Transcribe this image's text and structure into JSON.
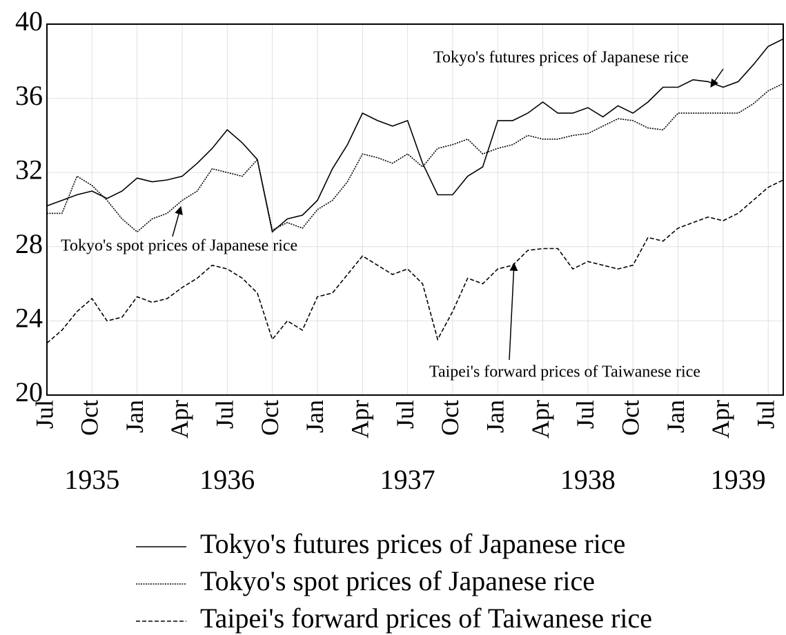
{
  "chart_data": {
    "type": "line",
    "x": [
      "1935-07",
      "1935-08",
      "1935-09",
      "1935-10",
      "1935-11",
      "1935-12",
      "1936-01",
      "1936-02",
      "1936-03",
      "1936-04",
      "1936-05",
      "1936-06",
      "1936-07",
      "1936-08",
      "1936-09",
      "1936-10",
      "1936-11",
      "1936-12",
      "1937-01",
      "1937-02",
      "1937-03",
      "1937-04",
      "1937-05",
      "1937-06",
      "1937-07",
      "1937-08",
      "1937-09",
      "1937-10",
      "1937-11",
      "1937-12",
      "1938-01",
      "1938-02",
      "1938-03",
      "1938-04",
      "1938-05",
      "1938-06",
      "1938-07",
      "1938-08",
      "1938-09",
      "1938-10",
      "1938-11",
      "1938-12",
      "1939-01",
      "1939-02",
      "1939-03",
      "1939-04",
      "1939-05",
      "1939-06",
      "1939-07",
      "1939-08"
    ],
    "series": [
      {
        "name": "Tokyo's futures prices of Japanese rice",
        "color": "#000000",
        "style": "solid",
        "values": [
          30.2,
          30.5,
          30.8,
          31.0,
          30.6,
          31.0,
          31.7,
          31.5,
          31.6,
          31.8,
          32.5,
          33.3,
          34.3,
          33.6,
          32.7,
          28.8,
          29.5,
          29.7,
          30.5,
          32.2,
          33.5,
          35.2,
          34.8,
          34.5,
          34.8,
          32.5,
          30.8,
          30.8,
          31.8,
          32.3,
          34.8,
          34.8,
          35.2,
          35.8,
          35.2,
          35.2,
          35.5,
          35.0,
          35.6,
          35.2,
          35.8,
          36.6,
          36.6,
          37.0,
          36.9,
          36.6,
          36.9,
          37.8,
          38.8,
          39.2
        ]
      },
      {
        "name": "Tokyo's spot prices of Japanese rice",
        "color": "#000000",
        "style": "dotted",
        "values": [
          29.8,
          29.8,
          31.8,
          31.3,
          30.5,
          29.5,
          28.8,
          29.5,
          29.8,
          30.5,
          31.0,
          32.2,
          32.0,
          31.8,
          32.7,
          28.9,
          29.3,
          29.0,
          30.0,
          30.5,
          31.5,
          33.0,
          32.8,
          32.5,
          33.0,
          32.3,
          33.3,
          33.5,
          33.8,
          33.0,
          33.3,
          33.5,
          34.0,
          33.8,
          33.8,
          34.0,
          34.1,
          34.5,
          34.9,
          34.8,
          34.4,
          34.3,
          35.2,
          35.2,
          35.2,
          35.2,
          35.2,
          35.7,
          36.4,
          36.8
        ]
      },
      {
        "name": "Taipei's forward prices of Taiwanese rice",
        "color": "#000000",
        "style": "dashed",
        "values": [
          22.8,
          23.5,
          24.5,
          25.2,
          24.0,
          24.2,
          25.3,
          25.0,
          25.2,
          25.8,
          26.3,
          27.0,
          26.8,
          26.3,
          25.5,
          23.0,
          24.0,
          23.5,
          25.3,
          25.5,
          26.5,
          27.5,
          27.0,
          26.5,
          26.8,
          26.0,
          23.0,
          24.5,
          26.3,
          26.0,
          26.8,
          27.0,
          27.8,
          27.9,
          27.9,
          26.8,
          27.2,
          27.0,
          26.8,
          27.0,
          28.5,
          28.3,
          29.0,
          29.3,
          29.6,
          29.4,
          29.8,
          30.5,
          31.2,
          31.6
        ]
      }
    ],
    "xlim": [
      "1935-07",
      "1939-08"
    ],
    "xticks": [
      {
        "value": "1935-07",
        "label": "Jul"
      },
      {
        "value": "1935-10",
        "label": "Oct"
      },
      {
        "value": "1936-01",
        "label": "Jan"
      },
      {
        "value": "1936-04",
        "label": "Apr"
      },
      {
        "value": "1936-07",
        "label": "Jul"
      },
      {
        "value": "1936-10",
        "label": "Oct"
      },
      {
        "value": "1937-01",
        "label": "Jan"
      },
      {
        "value": "1937-04",
        "label": "Apr"
      },
      {
        "value": "1937-07",
        "label": "Jul"
      },
      {
        "value": "1937-10",
        "label": "Oct"
      },
      {
        "value": "1938-01",
        "label": "Jan"
      },
      {
        "value": "1938-04",
        "label": "Apr"
      },
      {
        "value": "1938-07",
        "label": "Jul"
      },
      {
        "value": "1938-10",
        "label": "Oct"
      },
      {
        "value": "1939-01",
        "label": "Jan"
      },
      {
        "value": "1939-04",
        "label": "Apr"
      },
      {
        "value": "1939-07",
        "label": "Jul"
      }
    ],
    "year_labels": [
      {
        "value": "1935-10",
        "label": "1935"
      },
      {
        "value": "1936-07",
        "label": "1936"
      },
      {
        "value": "1937-07",
        "label": "1937"
      },
      {
        "value": "1938-07",
        "label": "1938"
      },
      {
        "value": "1939-05",
        "label": "1939"
      }
    ],
    "ylim": [
      20,
      40
    ],
    "yticks": [
      20,
      24,
      28,
      32,
      36,
      40
    ],
    "grid": true,
    "annotations": [
      "Tokyo's futures prices of Japanese rice",
      "Tokyo's spot prices of Japanese rice",
      "Taipei's forward prices of Taiwanese rice"
    ]
  }
}
